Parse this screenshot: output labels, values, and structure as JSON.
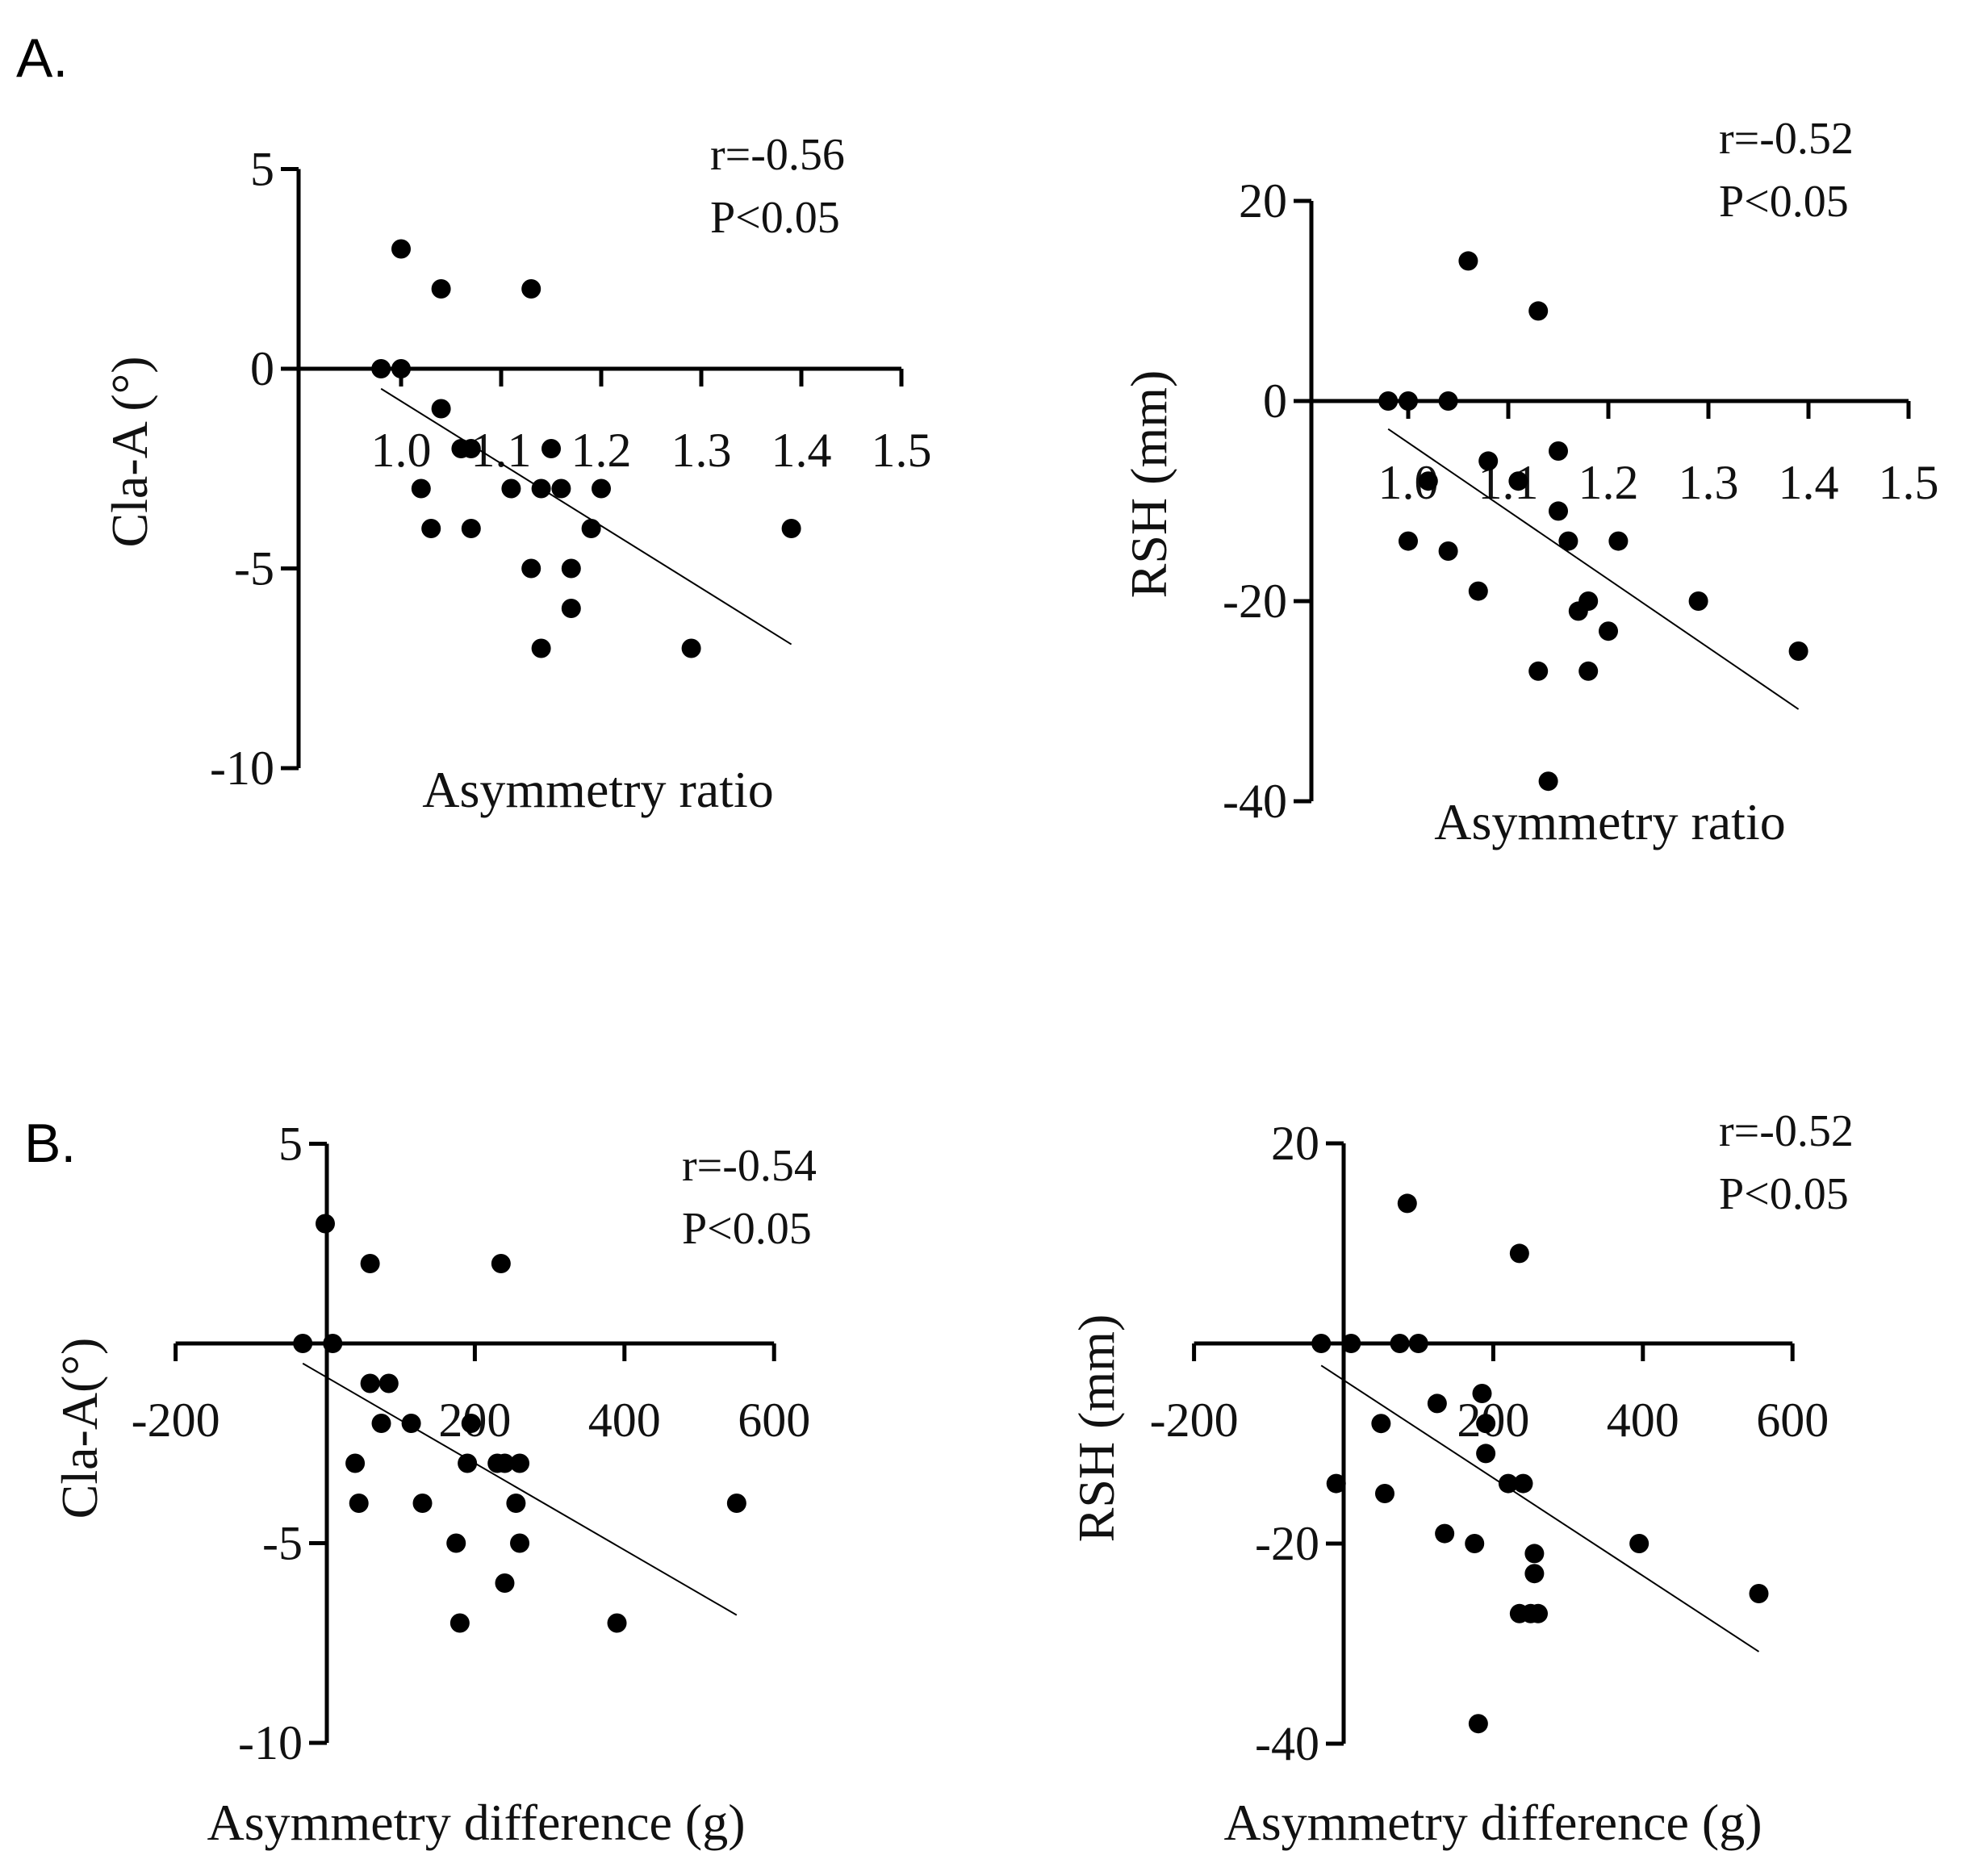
{
  "figure": {
    "panel_a_label": "A.",
    "panel_b_label": "B."
  },
  "chart_data": [
    {
      "type": "scatter",
      "panel": "A",
      "xlabel": "Asymmetry ratio",
      "ylabel": "Cla-A (°)",
      "xlim": [
        0.9,
        1.5
      ],
      "ylim": [
        -10,
        5
      ],
      "xticks": [
        "1.0",
        "1.1",
        "1.2",
        "1.3",
        "1.4",
        "1.5"
      ],
      "yticks": [
        "5",
        "0",
        "-5",
        "-10"
      ],
      "annotation": [
        "r=-0.56",
        "P<0.05"
      ],
      "points": [
        [
          0.98,
          0
        ],
        [
          1.0,
          3
        ],
        [
          1.0,
          0
        ],
        [
          1.02,
          -3
        ],
        [
          1.03,
          -4
        ],
        [
          1.04,
          2
        ],
        [
          1.04,
          -1
        ],
        [
          1.06,
          -2
        ],
        [
          1.07,
          -2
        ],
        [
          1.07,
          -4
        ],
        [
          1.11,
          -3
        ],
        [
          1.13,
          -5
        ],
        [
          1.13,
          2
        ],
        [
          1.14,
          -7
        ],
        [
          1.14,
          -3
        ],
        [
          1.15,
          -2
        ],
        [
          1.16,
          -3
        ],
        [
          1.17,
          -5
        ],
        [
          1.17,
          -6
        ],
        [
          1.19,
          -4
        ],
        [
          1.2,
          -3
        ],
        [
          1.29,
          -7
        ],
        [
          1.39,
          -4
        ]
      ],
      "fit": {
        "x": [
          0.98,
          1.39
        ],
        "y": [
          -0.5,
          -6.9
        ]
      }
    },
    {
      "type": "scatter",
      "panel": "A",
      "xlabel": "Asymmetry ratio",
      "ylabel": "RSH (mm)",
      "xlim": [
        0.9,
        1.5
      ],
      "ylim": [
        -40,
        20
      ],
      "xticks": [
        "1.0",
        "1.1",
        "1.2",
        "1.3",
        "1.4",
        "1.5"
      ],
      "yticks": [
        "20",
        "0",
        "-20",
        "-40"
      ],
      "annotation": [
        "r=-0.52",
        "P<0.05"
      ],
      "points": [
        [
          0.98,
          0
        ],
        [
          1.0,
          0
        ],
        [
          1.0,
          -14
        ],
        [
          1.02,
          -8
        ],
        [
          1.04,
          0
        ],
        [
          1.04,
          -15
        ],
        [
          1.06,
          14
        ],
        [
          1.07,
          -19
        ],
        [
          1.08,
          -6
        ],
        [
          1.11,
          -8
        ],
        [
          1.13,
          -27
        ],
        [
          1.13,
          9
        ],
        [
          1.14,
          -38
        ],
        [
          1.15,
          -11
        ],
        [
          1.15,
          -5
        ],
        [
          1.16,
          -14
        ],
        [
          1.17,
          -21
        ],
        [
          1.18,
          -20
        ],
        [
          1.18,
          -27
        ],
        [
          1.2,
          -23
        ],
        [
          1.21,
          -14
        ],
        [
          1.29,
          -20
        ],
        [
          1.39,
          -25
        ]
      ],
      "fit": {
        "x": [
          0.98,
          1.39
        ],
        "y": [
          -2.8,
          -30.8
        ]
      }
    },
    {
      "type": "scatter",
      "panel": "B",
      "xlabel": "Asymmetry difference (g)",
      "ylabel": "Cla-A(°)",
      "xlim": [
        -200,
        600
      ],
      "ylim": [
        -10,
        5
      ],
      "xticks": [
        "-200",
        "200",
        "400",
        "600"
      ],
      "yticks": [
        "5",
        "-5",
        "-10"
      ],
      "annotation": [
        "r=-0.54",
        "P<0.05"
      ],
      "points": [
        [
          -30,
          0
        ],
        [
          0,
          3
        ],
        [
          10,
          0
        ],
        [
          40,
          -3
        ],
        [
          45,
          -4
        ],
        [
          60,
          2
        ],
        [
          60,
          -1
        ],
        [
          75,
          -2
        ],
        [
          85,
          -1
        ],
        [
          115,
          -2
        ],
        [
          130,
          -4
        ],
        [
          175,
          -5
        ],
        [
          180,
          -7
        ],
        [
          190,
          -3
        ],
        [
          195,
          -2
        ],
        [
          230,
          -3
        ],
        [
          235,
          2
        ],
        [
          240,
          -3
        ],
        [
          240,
          -6
        ],
        [
          255,
          -4
        ],
        [
          260,
          -3
        ],
        [
          260,
          -5
        ],
        [
          390,
          -7
        ],
        [
          550,
          -4
        ]
      ],
      "fit": {
        "x": [
          -30,
          550
        ],
        "y": [
          -0.5,
          -6.8
        ]
      }
    },
    {
      "type": "scatter",
      "panel": "B",
      "xlabel": "Asymmetry difference (g)",
      "ylabel": "RSH (mm)",
      "xlim": [
        -200,
        600
      ],
      "ylim": [
        -40,
        20
      ],
      "xticks": [
        "-200",
        "200",
        "400",
        "600"
      ],
      "yticks": [
        "20",
        "-20",
        "-40"
      ],
      "annotation": [
        "r=-0.52",
        "P<0.05"
      ],
      "points": [
        [
          -30,
          0
        ],
        [
          -10,
          -14
        ],
        [
          10,
          0
        ],
        [
          50,
          -8
        ],
        [
          55,
          -15
        ],
        [
          75,
          0
        ],
        [
          85,
          14
        ],
        [
          100,
          0
        ],
        [
          125,
          -6
        ],
        [
          135,
          -19
        ],
        [
          175,
          -20
        ],
        [
          180,
          -38
        ],
        [
          185,
          -5
        ],
        [
          190,
          -11
        ],
        [
          190,
          -8
        ],
        [
          220,
          -14
        ],
        [
          235,
          -27
        ],
        [
          235,
          9
        ],
        [
          240,
          -14
        ],
        [
          250,
          -27
        ],
        [
          255,
          -23
        ],
        [
          260,
          -27
        ],
        [
          255,
          -21
        ],
        [
          395,
          -20
        ],
        [
          555,
          -25
        ]
      ],
      "fit": {
        "x": [
          -30,
          555
        ],
        "y": [
          -2.2,
          -30.8
        ]
      }
    }
  ]
}
